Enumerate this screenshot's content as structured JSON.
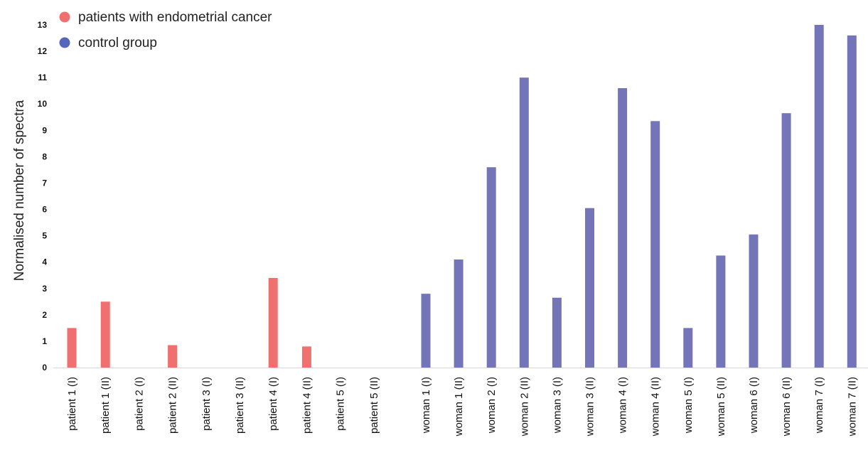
{
  "chart_data": {
    "type": "bar",
    "title": "",
    "xlabel": "",
    "ylabel": "Normalised number of spectra",
    "ylim": [
      0,
      13
    ],
    "yticks": [
      0,
      1,
      2,
      3,
      4,
      5,
      6,
      7,
      8,
      9,
      10,
      11,
      12,
      13
    ],
    "legend": {
      "position": "top-left",
      "entries": [
        {
          "label": "patients with endometrial cancer",
          "color": "#f07070"
        },
        {
          "label": "control group",
          "color": "#5566bb"
        }
      ]
    },
    "categories": [
      "patient 1 (I)",
      "patient 1 (II)",
      "patient 2 (I)",
      "patient 2 (II)",
      "patient 3 (I)",
      "patient 3 (II)",
      "patient 4 (I)",
      "patient 4 (II)",
      "patient 5 (I)",
      "patient 5 (II)",
      "woman 1 (I)",
      "woman 1 (II)",
      "woman 2 (I)",
      "woman 2 (II)",
      "woman 3 (I)",
      "woman 3 (II)",
      "woman 4 (I)",
      "woman 4 (II)",
      "woman 5 (I)",
      "woman 5 (II)",
      "woman 6 (I)",
      "woman 6 (II)",
      "woman 7 (I)",
      "woman 7 (II)"
    ],
    "series": [
      {
        "name": "patients with endometrial cancer",
        "color": "#f07070",
        "values": [
          1.5,
          2.5,
          0,
          0.85,
          0,
          0,
          3.4,
          0.8,
          0,
          0,
          null,
          null,
          null,
          null,
          null,
          null,
          null,
          null,
          null,
          null,
          null,
          null,
          null,
          null
        ]
      },
      {
        "name": "control group",
        "color": "#7375b8",
        "values": [
          null,
          null,
          null,
          null,
          null,
          null,
          null,
          null,
          null,
          null,
          2.8,
          4.1,
          7.6,
          11.0,
          2.65,
          6.05,
          10.6,
          9.35,
          1.5,
          4.25,
          5.05,
          9.65,
          13.0,
          12.6
        ]
      }
    ]
  }
}
